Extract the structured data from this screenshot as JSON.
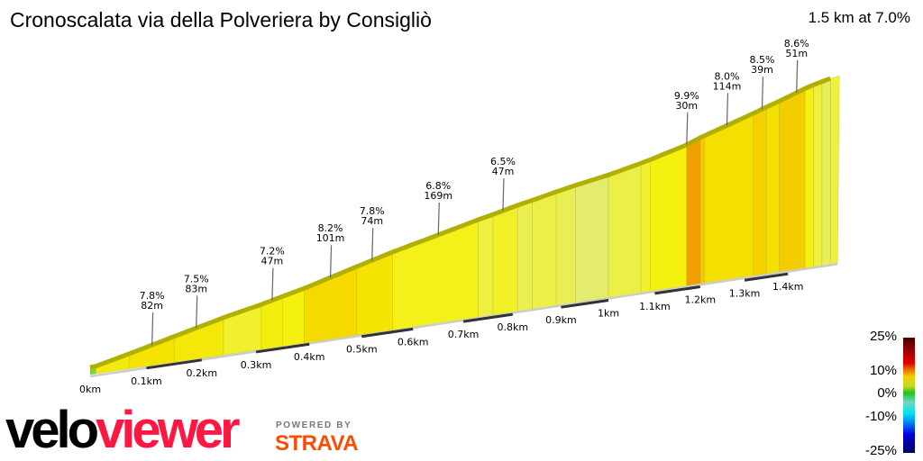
{
  "header": {
    "title": "Cronoscalata via della Polveriera by Consigliò",
    "summary": "1.5 km at 7.0%"
  },
  "branding": {
    "logo_velo": "velo",
    "logo_viewer": "viewer",
    "powered_by": "POWERED BY",
    "strava": "STRAVA",
    "logo_colors": {
      "velo": "#000000",
      "viewer": "#ff1744",
      "strava": "#fc4c02"
    }
  },
  "legend": {
    "labels": [
      "25%",
      "10%",
      "0%",
      "-10%",
      "-25%"
    ]
  },
  "chart_data": {
    "type": "area",
    "title": "Cronoscalata via della Polveriera by Consigliò",
    "xlabel": "",
    "ylabel": "",
    "xlim": [
      0,
      1.5
    ],
    "x_unit": "km",
    "x_ticks": [
      "0km",
      "0.1km",
      "0.2km",
      "0.3km",
      "0.4km",
      "0.5km",
      "0.6km",
      "0.7km",
      "0.8km",
      "0.9km",
      "1km",
      "1.1km",
      "1.2km",
      "1.3km",
      "1.4km"
    ],
    "x_tick_values": [
      0,
      0.1,
      0.2,
      0.3,
      0.4,
      0.5,
      0.6,
      0.7,
      0.8,
      0.9,
      1.0,
      1.1,
      1.2,
      1.3,
      1.4
    ],
    "segments": [
      {
        "from": 0.0,
        "to": 0.01,
        "gradient": 2.0
      },
      {
        "from": 0.01,
        "to": 0.07,
        "gradient": 7.4
      },
      {
        "from": 0.07,
        "to": 0.15,
        "gradient": 7.8
      },
      {
        "from": 0.15,
        "to": 0.24,
        "gradient": 7.5
      },
      {
        "from": 0.24,
        "to": 0.31,
        "gradient": 6.4
      },
      {
        "from": 0.31,
        "to": 0.35,
        "gradient": 7.2
      },
      {
        "from": 0.35,
        "to": 0.39,
        "gradient": 7.0
      },
      {
        "from": 0.39,
        "to": 0.49,
        "gradient": 8.2
      },
      {
        "from": 0.49,
        "to": 0.56,
        "gradient": 7.8
      },
      {
        "from": 0.56,
        "to": 0.73,
        "gradient": 6.8
      },
      {
        "from": 0.73,
        "to": 0.76,
        "gradient": 6.0
      },
      {
        "from": 0.76,
        "to": 0.81,
        "gradient": 6.5
      },
      {
        "from": 0.81,
        "to": 0.84,
        "gradient": 5.5
      },
      {
        "from": 0.84,
        "to": 0.89,
        "gradient": 5.8
      },
      {
        "from": 0.89,
        "to": 0.93,
        "gradient": 5.4
      },
      {
        "from": 0.93,
        "to": 1.0,
        "gradient": 4.6
      },
      {
        "from": 1.0,
        "to": 1.07,
        "gradient": 5.8
      },
      {
        "from": 1.07,
        "to": 1.09,
        "gradient": 6.3
      },
      {
        "from": 1.09,
        "to": 1.17,
        "gradient": 7.0
      },
      {
        "from": 1.17,
        "to": 1.2,
        "gradient": 9.9
      },
      {
        "from": 1.2,
        "to": 1.21,
        "gradient": 8.7
      },
      {
        "from": 1.21,
        "to": 1.32,
        "gradient": 8.0
      },
      {
        "from": 1.32,
        "to": 1.35,
        "gradient": 8.5
      },
      {
        "from": 1.35,
        "to": 1.38,
        "gradient": 8.0
      },
      {
        "from": 1.38,
        "to": 1.44,
        "gradient": 8.6
      },
      {
        "from": 1.44,
        "to": 1.46,
        "gradient": 7.0
      },
      {
        "from": 1.46,
        "to": 1.48,
        "gradient": 6.0
      },
      {
        "from": 1.48,
        "to": 1.5,
        "gradient": 5.2
      }
    ],
    "annotations": [
      {
        "km": 0.11,
        "gradient": "7.8%",
        "length": "82m"
      },
      {
        "km": 0.19,
        "gradient": "7.5%",
        "length": "83m"
      },
      {
        "km": 0.33,
        "gradient": "7.2%",
        "length": "47m"
      },
      {
        "km": 0.44,
        "gradient": "8.2%",
        "length": "101m"
      },
      {
        "km": 0.52,
        "gradient": "7.8%",
        "length": "74m"
      },
      {
        "km": 0.65,
        "gradient": "6.8%",
        "length": "169m"
      },
      {
        "km": 0.78,
        "gradient": "6.5%",
        "length": "47m"
      },
      {
        "km": 1.17,
        "gradient": "9.9%",
        "length": "30m"
      },
      {
        "km": 1.26,
        "gradient": "8.0%",
        "length": "114m"
      },
      {
        "km": 1.34,
        "gradient": "8.5%",
        "length": "39m"
      },
      {
        "km": 1.42,
        "gradient": "8.6%",
        "length": "51m"
      }
    ],
    "color_scale": {
      "range": [
        -25,
        25
      ],
      "stops": [
        {
          "gradient": 25,
          "color": "#4a0000"
        },
        {
          "gradient": 10,
          "color": "#f07000"
        },
        {
          "gradient": 9.9,
          "color": "#f0a000"
        },
        {
          "gradient": 8.5,
          "color": "#f4d000"
        },
        {
          "gradient": 8,
          "color": "#f4e000"
        },
        {
          "gradient": 7,
          "color": "#f4f010"
        },
        {
          "gradient": 6,
          "color": "#eef040"
        },
        {
          "gradient": 4.5,
          "color": "#e2ec70"
        },
        {
          "gradient": 0,
          "color": "#20c020"
        },
        {
          "gradient": -10,
          "color": "#00e0f0"
        },
        {
          "gradient": -25,
          "color": "#000060"
        }
      ]
    }
  }
}
